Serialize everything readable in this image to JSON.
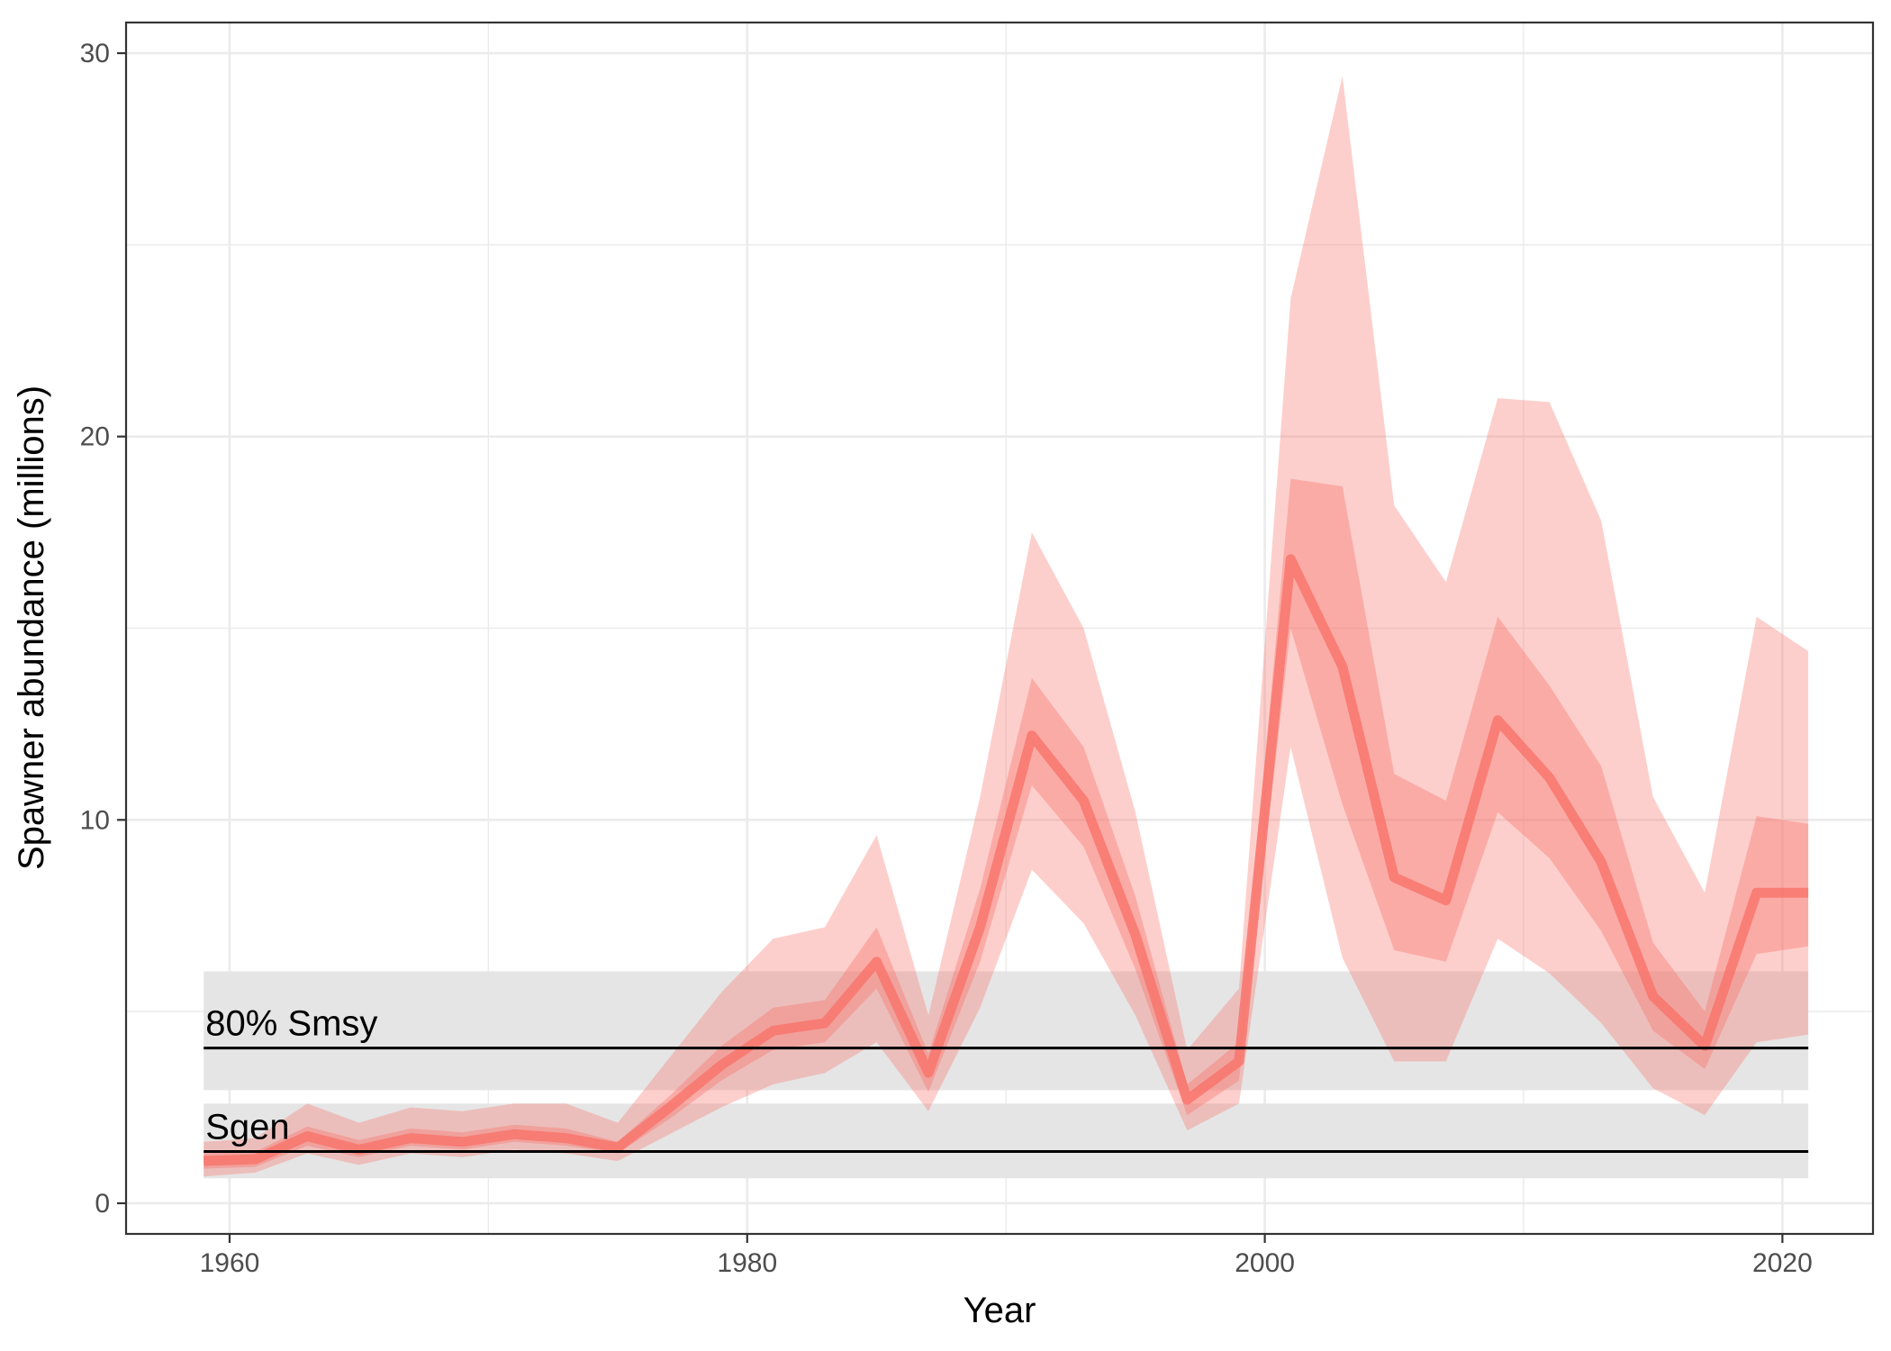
{
  "chart_data": {
    "type": "area",
    "xlabel": "Year",
    "ylabel": "Spawner abundance (millions)",
    "xlim": [
      1956,
      2023.5
    ],
    "ylim": [
      -0.8,
      30.8
    ],
    "x_ticks": [
      1960,
      1980,
      2000,
      2020
    ],
    "y_ticks": [
      0,
      10,
      20,
      30
    ],
    "grid": true,
    "x": [
      1959,
      1961,
      1963,
      1965,
      1967,
      1969,
      1971,
      1973,
      1975,
      1977,
      1979,
      1981,
      1983,
      1985,
      1987,
      1989,
      1991,
      1993,
      1995,
      1997,
      1999,
      2001,
      2003,
      2005,
      2007,
      2009,
      2011,
      2013,
      2015,
      2017,
      2019,
      2021
    ],
    "median": [
      1.1,
      1.15,
      1.75,
      1.4,
      1.7,
      1.6,
      1.8,
      1.7,
      1.45,
      2.5,
      3.6,
      4.5,
      4.7,
      6.3,
      3.4,
      7.2,
      12.2,
      10.5,
      7.0,
      2.7,
      3.7,
      16.8,
      14.0,
      8.5,
      7.9,
      12.6,
      11.1,
      8.9,
      5.4,
      4.1,
      8.1,
      8.1
    ],
    "inner_lower": [
      0.9,
      0.95,
      1.5,
      1.2,
      1.5,
      1.4,
      1.6,
      1.5,
      1.3,
      2.2,
      3.2,
      4.0,
      4.2,
      5.6,
      2.9,
      6.3,
      10.9,
      9.3,
      6.1,
      2.3,
      3.2,
      15.0,
      10.4,
      6.6,
      6.3,
      10.2,
      9.0,
      7.1,
      4.5,
      3.5,
      6.5,
      6.7
    ],
    "inner_upper": [
      1.3,
      1.35,
      2.0,
      1.65,
      1.95,
      1.85,
      2.05,
      1.95,
      1.6,
      2.8,
      4.1,
      5.1,
      5.3,
      7.2,
      3.9,
      8.2,
      13.7,
      11.9,
      8.0,
      3.1,
      4.2,
      18.9,
      18.7,
      11.2,
      10.5,
      15.3,
      13.5,
      11.4,
      6.8,
      5.0,
      10.1,
      9.9
    ],
    "outer_lower": [
      0.7,
      0.8,
      1.3,
      1.0,
      1.3,
      1.2,
      1.4,
      1.3,
      1.1,
      1.8,
      2.5,
      3.1,
      3.4,
      4.2,
      2.4,
      5.1,
      8.7,
      7.3,
      4.9,
      1.9,
      2.6,
      11.9,
      6.4,
      3.7,
      3.7,
      6.9,
      6.0,
      4.7,
      3.0,
      2.3,
      4.2,
      4.4
    ],
    "outer_upper": [
      1.6,
      1.7,
      2.6,
      2.1,
      2.5,
      2.4,
      2.6,
      2.6,
      2.1,
      3.8,
      5.5,
      6.9,
      7.2,
      9.6,
      4.9,
      10.6,
      17.5,
      15.0,
      10.2,
      4.0,
      5.6,
      23.6,
      29.4,
      18.2,
      16.2,
      21.0,
      20.9,
      17.8,
      10.6,
      8.1,
      15.3,
      14.4
    ],
    "reference_lines": [
      {
        "label": "80% Smsy",
        "value": 4.05,
        "band": [
          2.95,
          6.05
        ]
      },
      {
        "label": "Sgen",
        "value": 1.35,
        "band": [
          0.65,
          2.6
        ]
      }
    ],
    "colors": {
      "line": "#f8766d",
      "inner_band": "#f8766d",
      "outer_band": "#f8766d",
      "reference_band": "#e5e5e5",
      "reference_line": "#000000",
      "grid": "#ebebeb"
    }
  }
}
